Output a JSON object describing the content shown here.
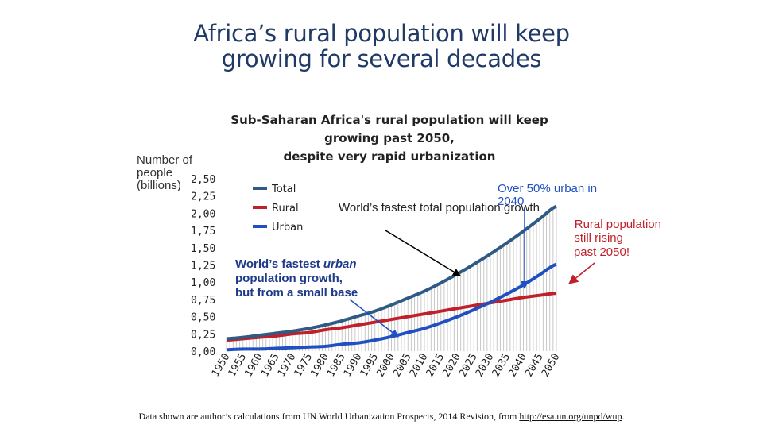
{
  "slide": {
    "title_line1": "Africa’s rural population will keep",
    "title_line2": "growing for several decades",
    "source_text": "Data shown are author’s calculations from UN World Urbanization Prospects, 2014 Revision, from ",
    "source_link": "http://esa.un.org/unpd/wup",
    "source_end": "."
  },
  "chart_data": {
    "type": "line",
    "title_lines": [
      "Sub-Saharan Africa's rural population will keep",
      "growing past 2050,",
      "despite very rapid urbanization"
    ],
    "ylabel_lines": [
      "Number of",
      "people",
      "(billions)"
    ],
    "xlabel": "",
    "ylim": [
      0,
      2.5
    ],
    "yticks": [
      "0,00",
      "0,25",
      "0,50",
      "0,75",
      "1,00",
      "1,25",
      "1,50",
      "1,75",
      "2,00",
      "2,25",
      "2,50"
    ],
    "x": [
      1950,
      1955,
      1960,
      1965,
      1970,
      1975,
      1980,
      1985,
      1990,
      1995,
      2000,
      2005,
      2010,
      2015,
      2020,
      2025,
      2030,
      2035,
      2040,
      2045,
      2050
    ],
    "xticks": [
      "1950",
      "1955",
      "1960",
      "1965",
      "1970",
      "1975",
      "1980",
      "1985",
      "1990",
      "1995",
      "2000",
      "2005",
      "2010",
      "2015",
      "2020",
      "2025",
      "2030",
      "2035",
      "2040",
      "2045",
      "2050"
    ],
    "series": [
      {
        "name": "Total",
        "color": "#2e5a84",
        "values": [
          0.18,
          0.2,
          0.23,
          0.26,
          0.29,
          0.33,
          0.38,
          0.44,
          0.51,
          0.58,
          0.67,
          0.77,
          0.87,
          0.99,
          1.12,
          1.26,
          1.41,
          1.57,
          1.74,
          1.92,
          2.1
        ]
      },
      {
        "name": "Rural",
        "color": "#c0202a",
        "values": [
          0.16,
          0.18,
          0.2,
          0.22,
          0.25,
          0.27,
          0.31,
          0.34,
          0.38,
          0.42,
          0.46,
          0.5,
          0.54,
          0.58,
          0.62,
          0.66,
          0.7,
          0.74,
          0.78,
          0.81,
          0.84
        ]
      },
      {
        "name": "Urban",
        "color": "#1f4fc0",
        "values": [
          0.02,
          0.03,
          0.03,
          0.04,
          0.05,
          0.06,
          0.07,
          0.1,
          0.12,
          0.16,
          0.21,
          0.27,
          0.33,
          0.41,
          0.5,
          0.6,
          0.71,
          0.83,
          0.96,
          1.11,
          1.26
        ]
      }
    ],
    "legend_position": "top-left",
    "grid": false,
    "annotations": {
      "total": "World’s fastest total population growth",
      "urban_line1": "World’s fastest ",
      "urban_italic": "urban",
      "urban_line2": "population growth,",
      "urban_line3": "but from a small base",
      "crossover_line1": "Over 50% urban in",
      "crossover_line2": "2040",
      "rural_line1": "Rural population",
      "rural_line2": "still rising",
      "rural_line3": "past 2050!"
    }
  }
}
